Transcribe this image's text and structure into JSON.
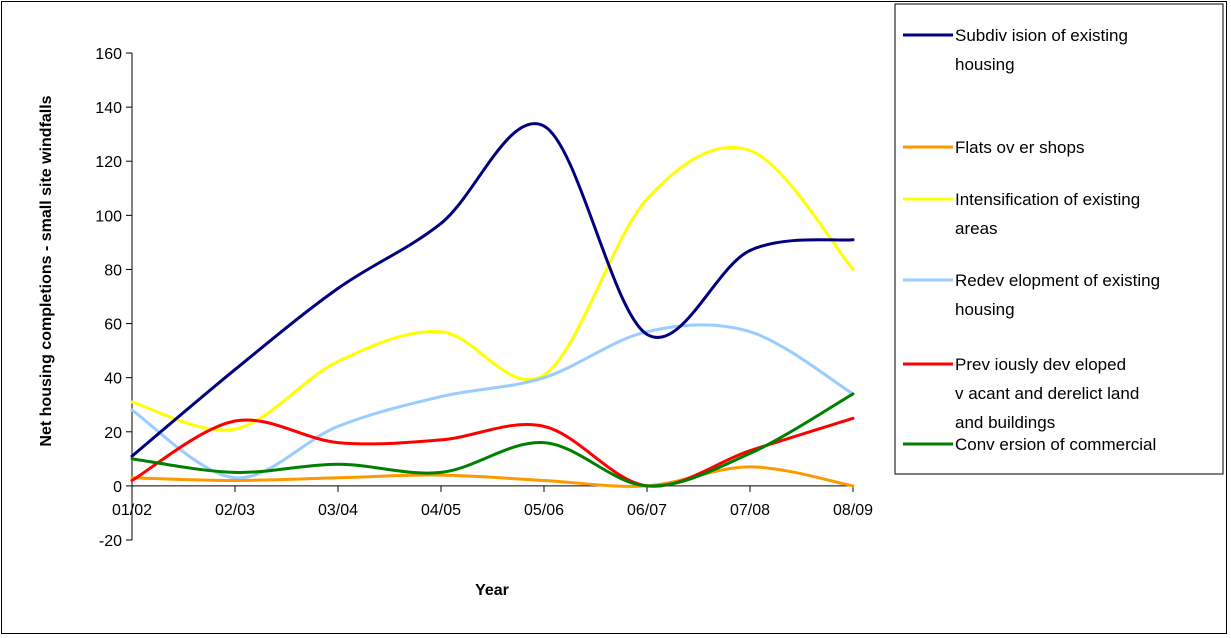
{
  "chart_data": {
    "type": "line",
    "title": "",
    "xlabel": "Year",
    "ylabel": "Net housing completions - small site windfalls",
    "categories": [
      "01/02",
      "02/03",
      "03/04",
      "04/05",
      "05/06",
      "06/07",
      "07/08",
      "08/09"
    ],
    "ylim": [
      -20,
      160
    ],
    "yticks": [
      -20,
      0,
      20,
      40,
      60,
      80,
      100,
      120,
      140,
      160
    ],
    "grid": false,
    "legend_position": "right",
    "series": [
      {
        "name_lines": [
          "Subdiv ision of existing",
          "housing"
        ],
        "color": "#000080",
        "values": [
          11,
          43,
          73,
          97,
          133,
          56,
          87,
          91
        ]
      },
      {
        "name_lines": [
          "Flats ov er shops"
        ],
        "color": "#FF9900",
        "values": [
          3,
          2,
          3,
          4,
          2,
          0,
          7,
          0
        ]
      },
      {
        "name_lines": [
          "Intensification of existing",
          "areas"
        ],
        "color": "#FFFF00",
        "values": [
          31,
          21,
          46,
          57,
          41,
          106,
          124,
          80
        ]
      },
      {
        "name_lines": [
          "Redev elopment of existing",
          "housing"
        ],
        "color": "#99CCFF",
        "values": [
          28,
          3,
          22,
          33,
          40,
          57,
          57,
          34
        ]
      },
      {
        "name_lines": [
          "Prev iously dev eloped",
          "v acant and derelict land",
          "and buildings"
        ],
        "color": "#FF0000",
        "values": [
          2,
          24,
          16,
          17,
          22,
          0,
          13,
          25
        ]
      },
      {
        "name_lines": [
          "Conv ersion of commercial"
        ],
        "color": "#008000",
        "values": [
          10,
          5,
          8,
          5,
          16,
          0,
          12,
          34
        ]
      }
    ]
  }
}
